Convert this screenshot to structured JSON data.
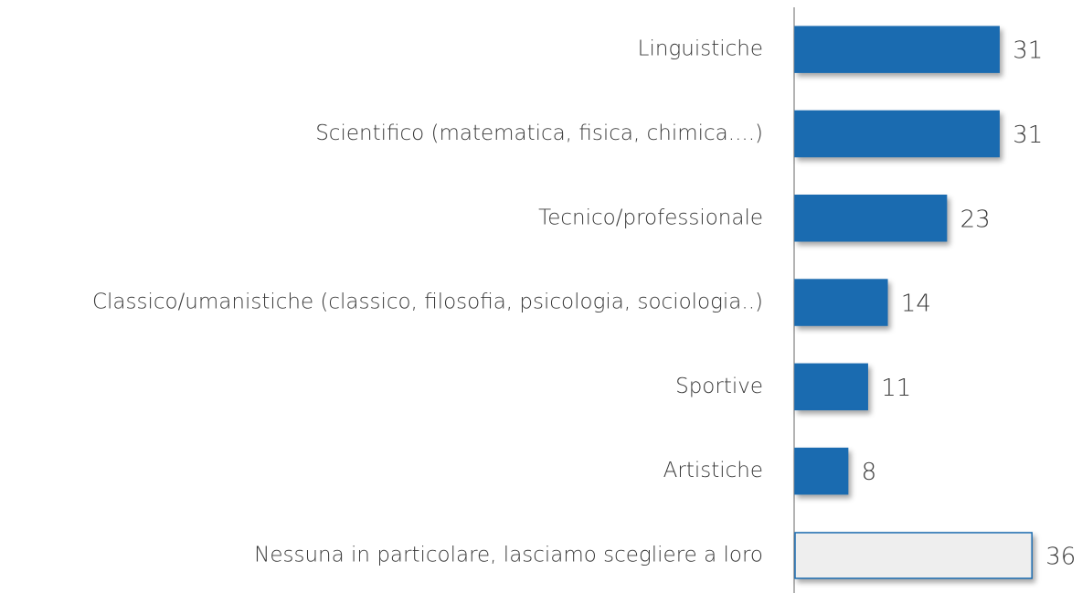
{
  "chart_data": {
    "type": "bar",
    "orientation": "horizontal",
    "categories": [
      "Linguistiche",
      "Scientifico (matematica, fisica, chimica....)",
      "Tecnico/professionale",
      "Classico/umanistiche (classico, filosofia, psicologia, sociologia..)",
      "Sportive",
      "Artistiche",
      "Nessuna in particolare, lasciamo scegliere a loro"
    ],
    "values": [
      31,
      31,
      23,
      14,
      11,
      8,
      36
    ],
    "colors": [
      "#1a6bb0",
      "#1a6bb0",
      "#1a6bb0",
      "#1a6bb0",
      "#1a6bb0",
      "#1a6bb0",
      "#eeeeee"
    ],
    "edge_color": "#1a6bb0"
  }
}
